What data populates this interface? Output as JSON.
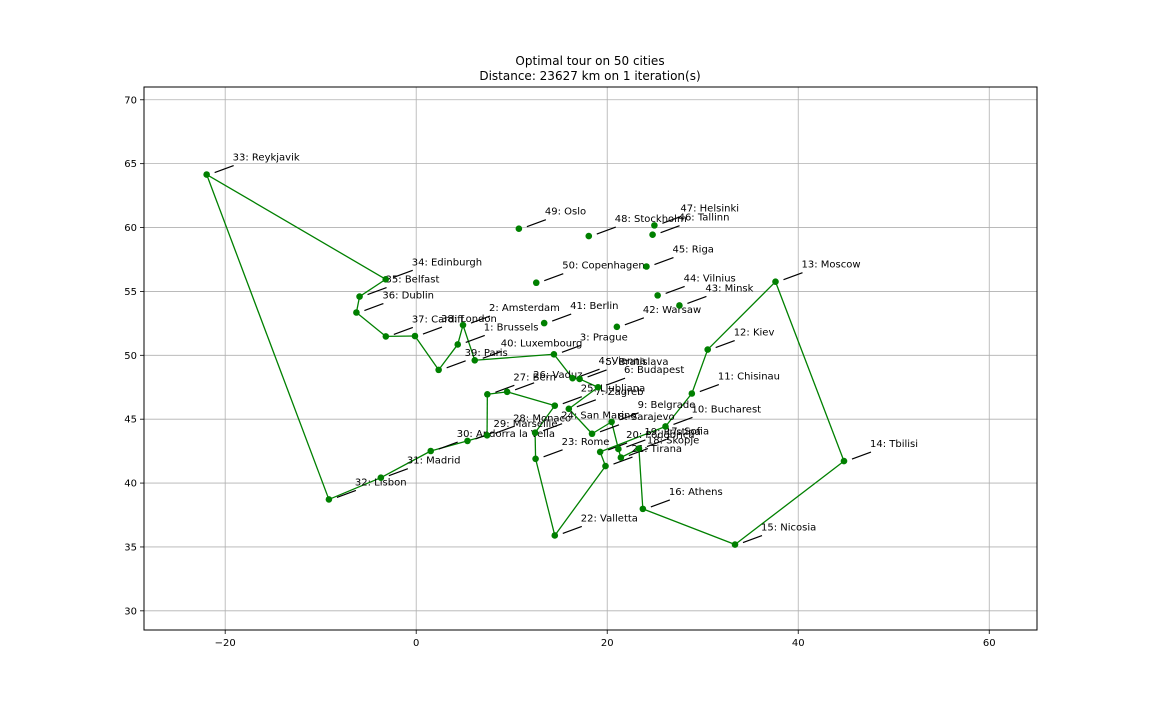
{
  "chart_data": {
    "type": "line",
    "title": "Optimal tour on 50 cities",
    "subtitle": "Distance: 23627 km on 1 iteration(s)",
    "xlabel": "",
    "ylabel": "",
    "xlim": [
      -28.5,
      65
    ],
    "ylim": [
      28.5,
      71
    ],
    "x_ticks": [
      -20,
      0,
      20,
      40,
      60
    ],
    "y_ticks": [
      30,
      35,
      40,
      45,
      50,
      55,
      60,
      65,
      70
    ],
    "grid": true,
    "line_color": "#008000",
    "marker_color": "#008000",
    "cities": [
      {
        "id": 1,
        "label": "1: Brussels",
        "x": 4.35,
        "y": 50.85
      },
      {
        "id": 2,
        "label": "2: Amsterdam",
        "x": 4.9,
        "y": 52.37
      },
      {
        "id": 3,
        "label": "3: Prague",
        "x": 14.42,
        "y": 50.08
      },
      {
        "id": 4,
        "label": "4: Vienna",
        "x": 16.37,
        "y": 48.21
      },
      {
        "id": 5,
        "label": "5: Bratislava",
        "x": 17.11,
        "y": 48.15
      },
      {
        "id": 6,
        "label": "6: Budapest",
        "x": 19.04,
        "y": 47.5
      },
      {
        "id": 7,
        "label": "7: Zagreb",
        "x": 15.98,
        "y": 45.81
      },
      {
        "id": 8,
        "label": "8: Sarajevo",
        "x": 18.41,
        "y": 43.86
      },
      {
        "id": 9,
        "label": "9: Belgrade",
        "x": 20.46,
        "y": 44.79
      },
      {
        "id": 10,
        "label": "10: Bucharest",
        "x": 26.1,
        "y": 44.43
      },
      {
        "id": 11,
        "label": "11: Chisinau",
        "x": 28.86,
        "y": 47.01
      },
      {
        "id": 12,
        "label": "12: Kiev",
        "x": 30.52,
        "y": 50.45
      },
      {
        "id": 13,
        "label": "13: Moscow",
        "x": 37.62,
        "y": 55.76
      },
      {
        "id": 14,
        "label": "14: Tbilisi",
        "x": 44.79,
        "y": 41.72
      },
      {
        "id": 15,
        "label": "15: Nicosia",
        "x": 33.38,
        "y": 35.19
      },
      {
        "id": 16,
        "label": "16: Athens",
        "x": 23.73,
        "y": 37.98
      },
      {
        "id": 17,
        "label": "17: Sofia",
        "x": 23.32,
        "y": 42.7
      },
      {
        "id": 18,
        "label": "18: Skopje",
        "x": 21.43,
        "y": 42.0
      },
      {
        "id": 19,
        "label": "19: Pristina",
        "x": 21.17,
        "y": 42.67
      },
      {
        "id": 20,
        "label": "20: Podgorica",
        "x": 19.26,
        "y": 42.44
      },
      {
        "id": 21,
        "label": "21: Tirana",
        "x": 19.82,
        "y": 41.33
      },
      {
        "id": 22,
        "label": "22: Valletta",
        "x": 14.51,
        "y": 35.9
      },
      {
        "id": 23,
        "label": "23: Rome",
        "x": 12.5,
        "y": 41.9
      },
      {
        "id": 24,
        "label": "24: San Marino",
        "x": 12.45,
        "y": 43.94
      },
      {
        "id": 25,
        "label": "25: Ljubljana",
        "x": 14.51,
        "y": 46.06
      },
      {
        "id": 26,
        "label": "26: Vaduz",
        "x": 9.52,
        "y": 47.14
      },
      {
        "id": 27,
        "label": "27: Bern",
        "x": 7.45,
        "y": 46.95
      },
      {
        "id": 28,
        "label": "28: Monaco",
        "x": 7.42,
        "y": 43.74
      },
      {
        "id": 29,
        "label": "29: Marseille",
        "x": 5.37,
        "y": 43.3
      },
      {
        "id": 30,
        "label": "30: Andorra la Vella",
        "x": 1.52,
        "y": 42.51
      },
      {
        "id": 31,
        "label": "31: Madrid",
        "x": -3.7,
        "y": 40.42
      },
      {
        "id": 32,
        "label": "32: Lisbon",
        "x": -9.14,
        "y": 38.72
      },
      {
        "id": 33,
        "label": "33: Reykjavik",
        "x": -21.94,
        "y": 64.15
      },
      {
        "id": 34,
        "label": "34: Edinburgh",
        "x": -3.19,
        "y": 55.95
      },
      {
        "id": 35,
        "label": "35: Belfast",
        "x": -5.93,
        "y": 54.6
      },
      {
        "id": 36,
        "label": "36: Dublin",
        "x": -6.26,
        "y": 53.35
      },
      {
        "id": 37,
        "label": "37: Cardiff",
        "x": -3.18,
        "y": 51.48
      },
      {
        "id": 38,
        "label": "38: London",
        "x": -0.13,
        "y": 51.51
      },
      {
        "id": 39,
        "label": "39: Paris",
        "x": 2.35,
        "y": 48.86
      },
      {
        "id": 40,
        "label": "40: Luxembourg",
        "x": 6.13,
        "y": 49.61
      },
      {
        "id": 41,
        "label": "41: Berlin",
        "x": 13.4,
        "y": 52.52
      },
      {
        "id": 42,
        "label": "42: Warsaw",
        "x": 21.01,
        "y": 52.23
      },
      {
        "id": 43,
        "label": "43: Minsk",
        "x": 27.56,
        "y": 53.9
      },
      {
        "id": 44,
        "label": "44: Vilnius",
        "x": 25.28,
        "y": 54.69
      },
      {
        "id": 45,
        "label": "45: Riga",
        "x": 24.11,
        "y": 56.95
      },
      {
        "id": 46,
        "label": "46: Tallinn",
        "x": 24.75,
        "y": 59.44
      },
      {
        "id": 47,
        "label": "47: Helsinki",
        "x": 24.94,
        "y": 60.17
      },
      {
        "id": 48,
        "label": "48: Stockholm",
        "x": 18.07,
        "y": 59.33
      },
      {
        "id": 49,
        "label": "49: Oslo",
        "x": 10.75,
        "y": 59.91
      },
      {
        "id": 50,
        "label": "50: Copenhagen",
        "x": 12.57,
        "y": 55.68
      }
    ],
    "tour": [
      33,
      34,
      35,
      36,
      37,
      38,
      39,
      1,
      2,
      40,
      3,
      4,
      5,
      6,
      7,
      8,
      9,
      19,
      18,
      17,
      16,
      15,
      14,
      13,
      12,
      11,
      10,
      20,
      21,
      22,
      23,
      24,
      25,
      26,
      27,
      28,
      29,
      30,
      31,
      32,
      33
    ]
  }
}
